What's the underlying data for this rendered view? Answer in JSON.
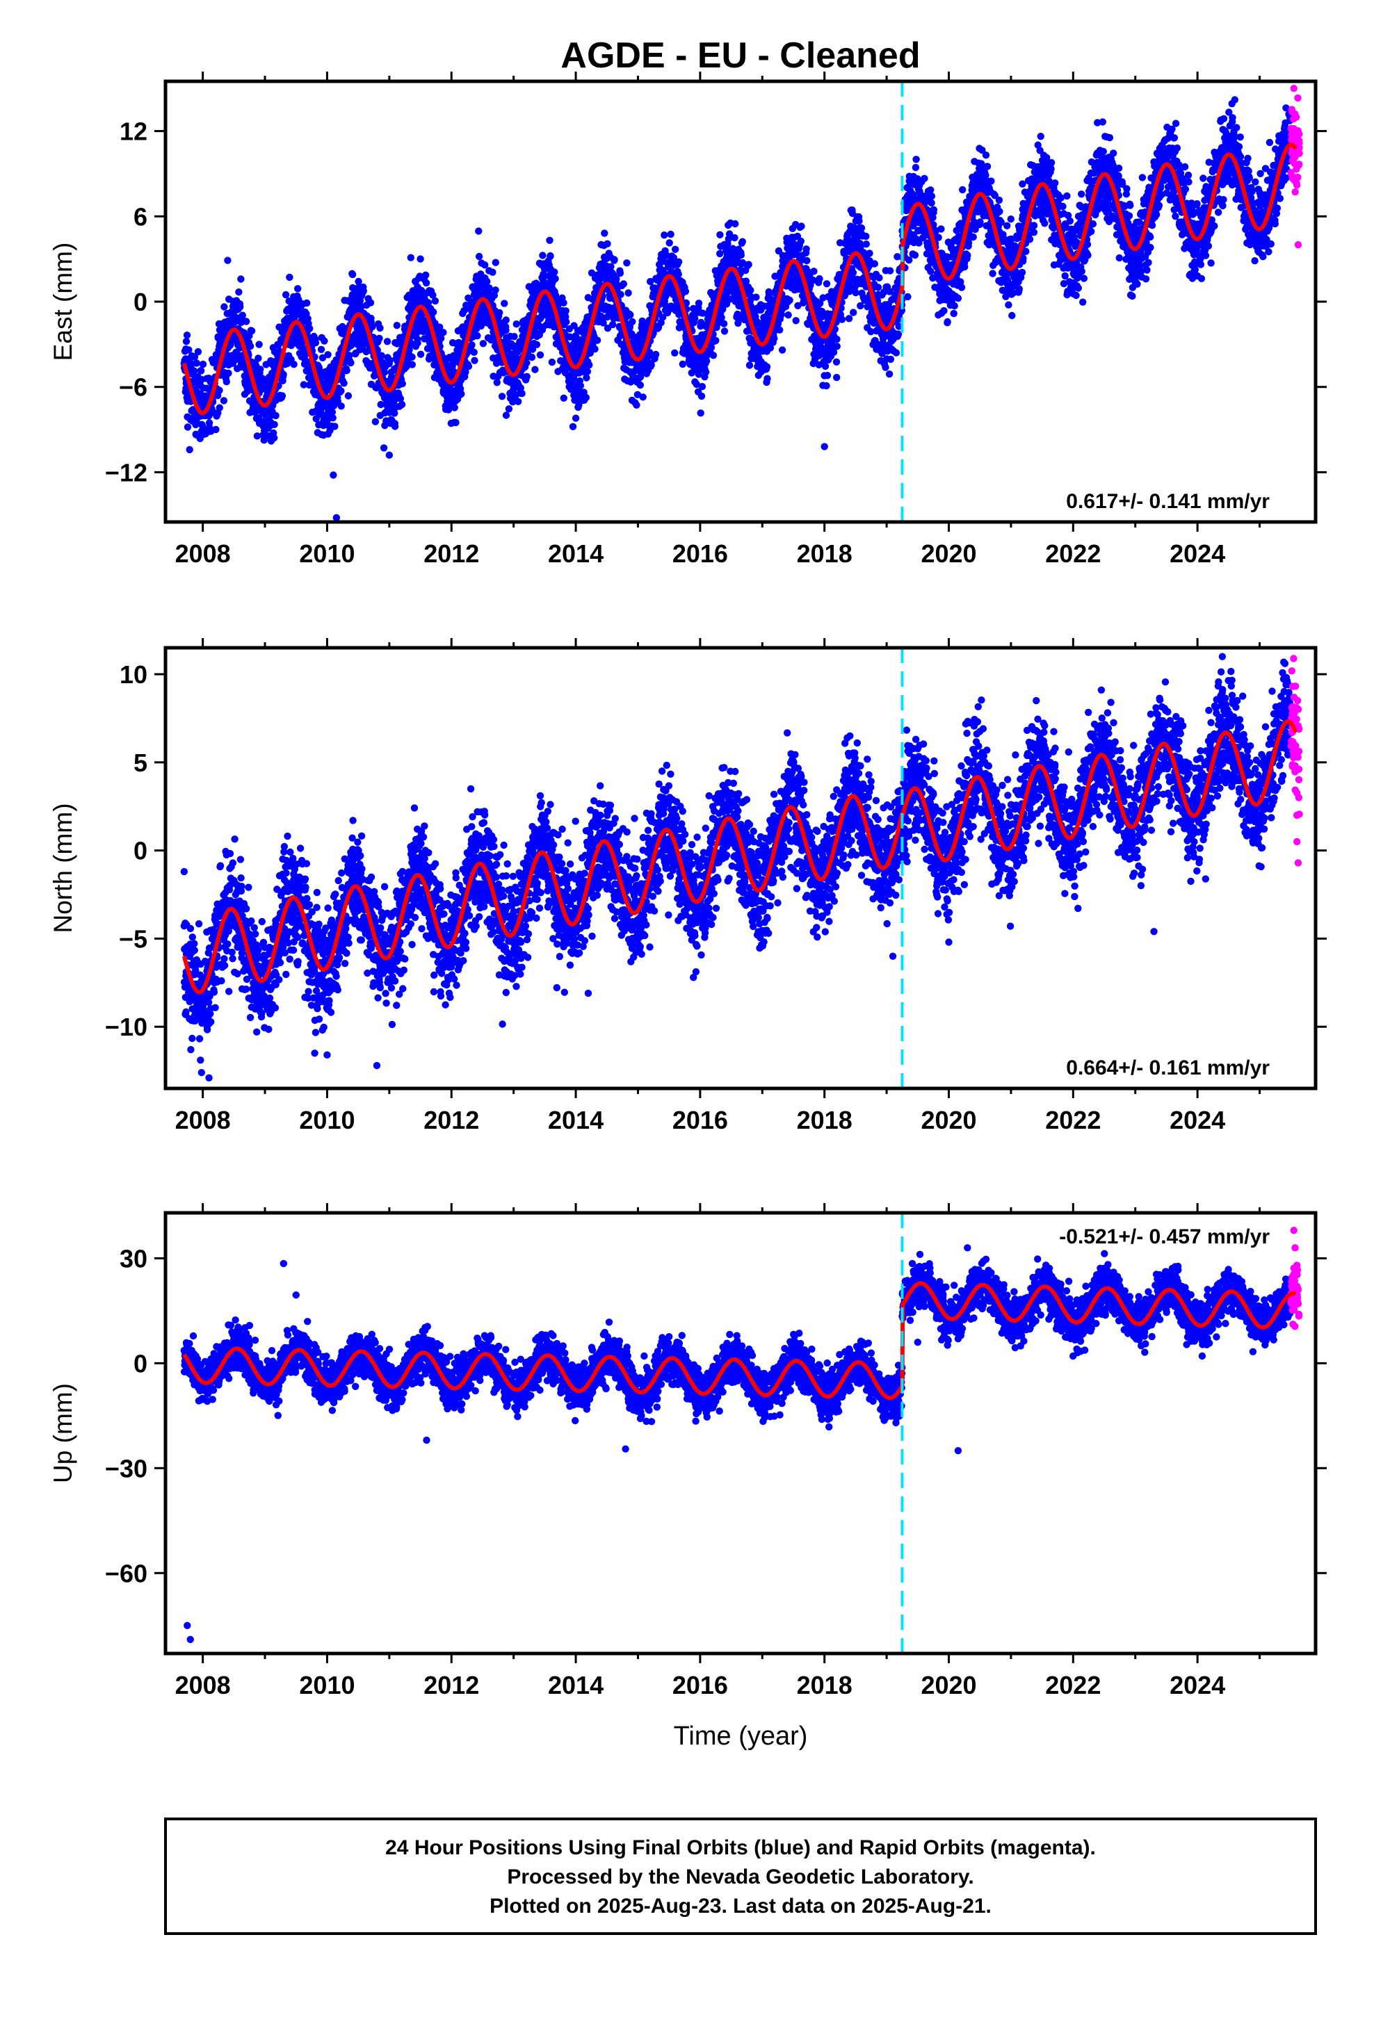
{
  "title": "AGDE  - EU - Cleaned",
  "x_axis_label": "Time (year)",
  "footer": {
    "line1": "24 Hour Positions Using Final Orbits (blue) and Rapid Orbits (magenta).",
    "line2": "Processed by the Nevada Geodetic Laboratory.",
    "line3": "Plotted on 2025-Aug-23. Last data on 2025-Aug-21."
  },
  "colors": {
    "final_orbits": "#0000ff",
    "rapid_orbits": "#ff00ff",
    "model": "#ff0000",
    "event_line": "#00e5ff",
    "frame": "#000000"
  },
  "chart_data": [
    {
      "type": "scatter",
      "panel": "east",
      "ylabel": "East (mm)",
      "xlim": [
        2007.4,
        2025.9
      ],
      "ylim": [
        -15.5,
        15.5
      ],
      "xticks": [
        "2008",
        "2010",
        "2012",
        "2014",
        "2016",
        "2018",
        "2020",
        "2022",
        "2024"
      ],
      "yticks": [
        "12",
        "6",
        "0",
        "−6",
        "−12"
      ],
      "ytick_values": [
        12,
        6,
        0,
        -6,
        -12
      ],
      "rate_label": "0.617+/- 0.141 mm/yr",
      "event_year": 2019.25,
      "grid": false,
      "model": {
        "start": 2007.7,
        "end": 2025.58,
        "seasonal_amplitude": 2.8,
        "peak_phase": 0.5,
        "segments": [
          {
            "from": 2007.7,
            "to": 2019.25,
            "y_start": -5.2,
            "y_end": 1.0
          },
          {
            "from": 2019.25,
            "to": 2025.58,
            "y_start": 3.9,
            "y_end": 8.3
          }
        ]
      },
      "scatter": {
        "final_orbits_start": 2007.7,
        "final_orbits_end": 2025.5,
        "rapid_orbits_start": 2025.5,
        "rapid_orbits_end": 2025.64,
        "noise_sd": 1.4
      },
      "points": {
        "final_orbits": [
          [
            2007.73,
            -6.1
          ],
          [
            2008.4,
            2.9
          ],
          [
            2009.1,
            -9.8
          ],
          [
            2010.1,
            -12.2
          ],
          [
            2010.15,
            -15.2
          ],
          [
            2011.0,
            -10.8
          ],
          [
            2014.0,
            -8.2
          ],
          [
            2018.0,
            -10.2
          ],
          [
            2019.3,
            7.2
          ],
          [
            2024.6,
            14.2
          ]
        ],
        "rapid_orbits": [
          [
            2025.55,
            15.0
          ],
          [
            2025.57,
            13.2
          ],
          [
            2025.6,
            11.4
          ],
          [
            2025.6,
            8.2
          ],
          [
            2025.62,
            4.0
          ],
          [
            2025.63,
            9.6
          ]
        ]
      }
    },
    {
      "type": "scatter",
      "panel": "north",
      "ylabel": "North (mm)",
      "xlim": [
        2007.4,
        2025.9
      ],
      "ylim": [
        -13.5,
        11.5
      ],
      "xticks": [
        "2008",
        "2010",
        "2012",
        "2014",
        "2016",
        "2018",
        "2020",
        "2022",
        "2024"
      ],
      "yticks": [
        "10",
        "5",
        "0",
        "−5",
        "−10"
      ],
      "ytick_values": [
        10,
        5,
        0,
        -5,
        -10
      ],
      "rate_label": "0.664+/- 0.161 mm/yr",
      "event_year": 2019.25,
      "grid": false,
      "model": {
        "start": 2007.7,
        "end": 2025.58,
        "seasonal_amplitude": 2.2,
        "peak_phase": 0.45,
        "segments": [
          {
            "from": 2007.7,
            "to": 2019.25,
            "y_start": -6.0,
            "y_end": 1.4
          },
          {
            "from": 2019.25,
            "to": 2025.58,
            "y_start": 1.2,
            "y_end": 5.2
          }
        ]
      },
      "scatter": {
        "final_orbits_start": 2007.7,
        "final_orbits_end": 2025.5,
        "rapid_orbits_start": 2025.5,
        "rapid_orbits_end": 2025.64,
        "noise_sd": 1.5
      },
      "points": {
        "final_orbits": [
          [
            2007.7,
            -1.2
          ],
          [
            2007.98,
            -12.6
          ],
          [
            2008.1,
            -12.9
          ],
          [
            2009.8,
            -11.5
          ],
          [
            2010.0,
            -11.6
          ],
          [
            2010.8,
            -12.2
          ],
          [
            2014.2,
            -8.1
          ],
          [
            2019.1,
            -6.0
          ],
          [
            2020.0,
            -5.2
          ],
          [
            2023.3,
            -4.6
          ],
          [
            2024.4,
            11.0
          ]
        ],
        "rapid_orbits": [
          [
            2025.55,
            6.0
          ],
          [
            2025.57,
            4.5
          ],
          [
            2025.6,
            2.0
          ],
          [
            2025.6,
            0.5
          ],
          [
            2025.62,
            -0.7
          ],
          [
            2025.63,
            3.0
          ]
        ]
      }
    },
    {
      "type": "scatter",
      "panel": "up",
      "ylabel": "Up (mm)",
      "xlim": [
        2007.4,
        2025.9
      ],
      "ylim": [
        -83,
        43
      ],
      "xticks": [
        "2008",
        "2010",
        "2012",
        "2014",
        "2016",
        "2018",
        "2020",
        "2022",
        "2024"
      ],
      "yticks": [
        "30",
        "0",
        "−30",
        "−60"
      ],
      "ytick_values": [
        30,
        0,
        -30,
        -60
      ],
      "rate_label": "-0.521+/- 0.457 mm/yr",
      "event_year": 2019.25,
      "grid": false,
      "model": {
        "start": 2007.7,
        "end": 2025.58,
        "seasonal_amplitude": 5.0,
        "peak_phase": 0.55,
        "segments": [
          {
            "from": 2007.7,
            "to": 2019.25,
            "y_start": -0.5,
            "y_end": -5.0
          },
          {
            "from": 2019.25,
            "to": 2025.58,
            "y_start": 18.0,
            "y_end": 15.0
          }
        ]
      },
      "scatter": {
        "final_orbits_start": 2007.7,
        "final_orbits_end": 2025.5,
        "rapid_orbits_start": 2025.5,
        "rapid_orbits_end": 2025.64,
        "noise_sd": 3.2
      },
      "points": {
        "final_orbits": [
          [
            2007.75,
            -75.0
          ],
          [
            2007.8,
            -79.0
          ],
          [
            2009.3,
            28.5
          ],
          [
            2009.5,
            19.5
          ],
          [
            2011.6,
            -22.0
          ],
          [
            2014.8,
            -24.5
          ],
          [
            2019.5,
            6.0
          ],
          [
            2020.15,
            -25.0
          ],
          [
            2020.3,
            33.0
          ]
        ],
        "rapid_orbits": [
          [
            2025.55,
            38.0
          ],
          [
            2025.57,
            33.0
          ],
          [
            2025.6,
            28.0
          ],
          [
            2025.6,
            22.0
          ],
          [
            2025.62,
            17.0
          ],
          [
            2025.63,
            14.0
          ]
        ]
      }
    }
  ]
}
